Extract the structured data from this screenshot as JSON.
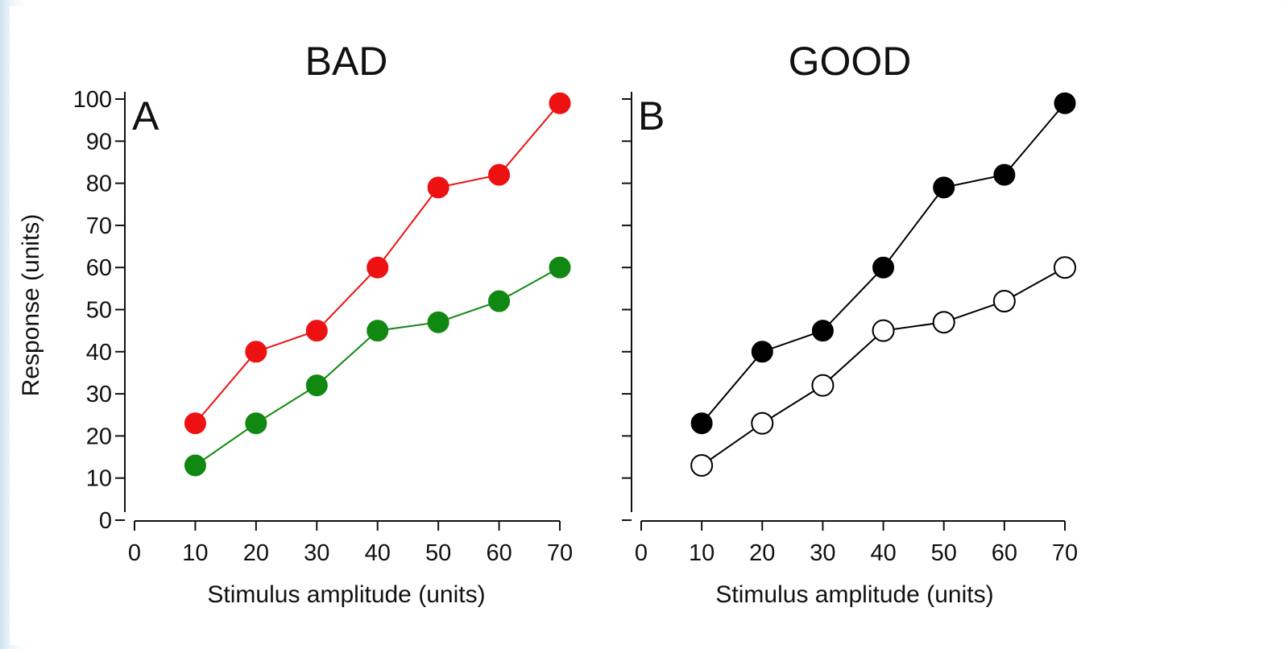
{
  "chart_data": [
    {
      "type": "line",
      "title": "BAD",
      "panel_label": "A",
      "xlabel": "Stimulus amplitude (units)",
      "ylabel": "Response (units)",
      "xlim": [
        0,
        70
      ],
      "ylim": [
        0,
        100
      ],
      "xticks": [
        "0",
        "10",
        "20",
        "30",
        "40",
        "50",
        "60",
        "70"
      ],
      "yticks": [
        "0",
        "10",
        "20",
        "30",
        "40",
        "50",
        "60",
        "70",
        "80",
        "90",
        "100"
      ],
      "x": [
        10,
        20,
        30,
        40,
        50,
        60,
        70
      ],
      "grid": false,
      "series": [
        {
          "values": [
            23,
            40,
            45,
            60,
            79,
            82,
            99
          ],
          "color": "#ee1111",
          "marker": "filled-circle"
        },
        {
          "values": [
            13,
            23,
            32,
            45,
            47,
            52,
            60
          ],
          "color": "#118811",
          "marker": "filled-circle"
        }
      ]
    },
    {
      "type": "line",
      "title": "GOOD",
      "panel_label": "B",
      "xlabel": "Stimulus amplitude (units)",
      "ylabel": "",
      "xlim": [
        0,
        70
      ],
      "ylim": [
        0,
        100
      ],
      "xticks": [
        "0",
        "10",
        "20",
        "30",
        "40",
        "50",
        "60",
        "70"
      ],
      "yticks": [
        "",
        "",
        "",
        "",
        "",
        "",
        "",
        "",
        "",
        "",
        ""
      ],
      "x": [
        10,
        20,
        30,
        40,
        50,
        60,
        70
      ],
      "grid": false,
      "series": [
        {
          "values": [
            23,
            40,
            45,
            60,
            79,
            82,
            99
          ],
          "color": "#000000",
          "marker": "filled-circle"
        },
        {
          "values": [
            13,
            23,
            32,
            45,
            47,
            52,
            60
          ],
          "color": "#000000",
          "marker": "open-circle"
        }
      ]
    }
  ]
}
